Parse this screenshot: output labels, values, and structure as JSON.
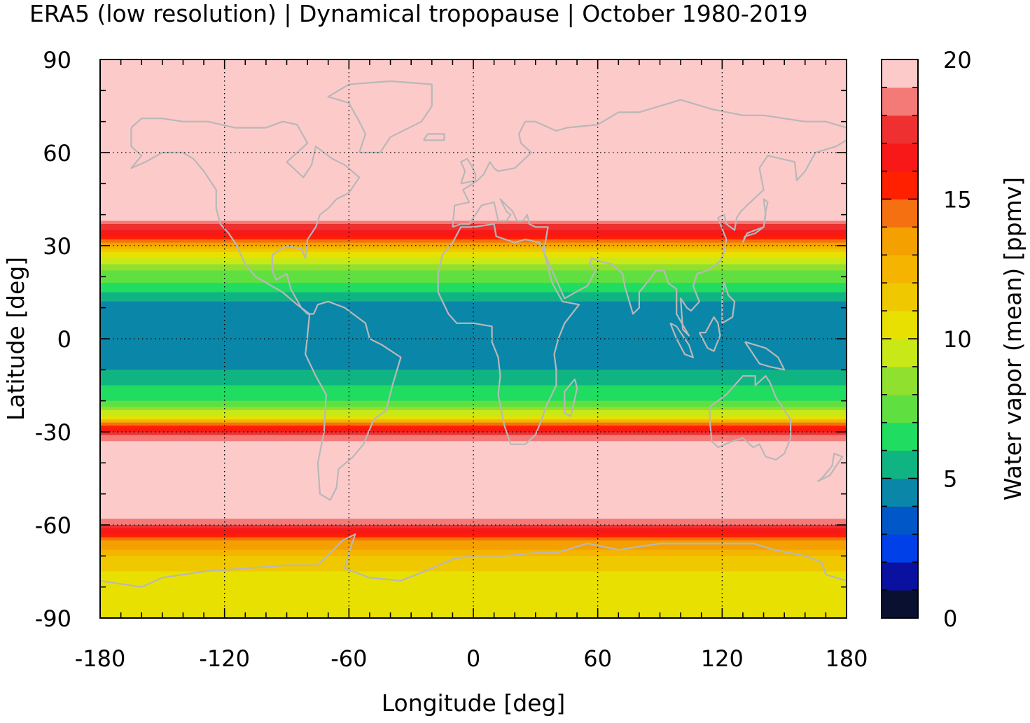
{
  "chart_data": {
    "type": "heatmap",
    "title": "ERA5 (low resolution) | Dynamical tropopause | October 1980-2019",
    "xlabel": "Longitude [deg]",
    "ylabel": "Latitude [deg]",
    "colorbar_label": "Water vapor (mean) [ppmv]",
    "xlim": [
      -180,
      180
    ],
    "ylim": [
      -90,
      90
    ],
    "x_ticks": [
      "-180",
      "-120",
      "-60",
      "0",
      "60",
      "120",
      "180"
    ],
    "y_ticks": [
      "90",
      "60",
      "30",
      "0",
      "-30",
      "-60",
      "-90"
    ],
    "x_tick_values": [
      -180,
      -120,
      -60,
      0,
      60,
      120,
      180
    ],
    "y_tick_values": [
      90,
      60,
      30,
      0,
      -30,
      -60,
      -90
    ],
    "colorbar_ticks": [
      "20",
      "15",
      "10",
      "5",
      "0"
    ],
    "colorbar_tick_values": [
      20,
      15,
      10,
      5,
      0
    ],
    "colorbar_range": [
      0,
      20
    ],
    "grid": true,
    "coastlines": true,
    "colormap": [
      "#0a1030",
      "#0a10a0",
      "#0040e8",
      "#0058c8",
      "#0a86a8",
      "#10b482",
      "#20dc60",
      "#60e040",
      "#90e030",
      "#c8e818",
      "#e8e000",
      "#f0c800",
      "#f4b400",
      "#f4a000",
      "#f47010",
      "#ff2000",
      "#f81818",
      "#ee3030",
      "#f47a78",
      "#fdcaca"
    ],
    "zonal_mean_profile": [
      {
        "lat": 90,
        "value": 20
      },
      {
        "lat": 60,
        "value": 20
      },
      {
        "lat": 40,
        "value": 20
      },
      {
        "lat": 35,
        "value": 17
      },
      {
        "lat": 32,
        "value": 15
      },
      {
        "lat": 28,
        "value": 11
      },
      {
        "lat": 22,
        "value": 8
      },
      {
        "lat": 15,
        "value": 6
      },
      {
        "lat": 12,
        "value": 5
      },
      {
        "lat": 0,
        "value": 4.5
      },
      {
        "lat": -10,
        "value": 5
      },
      {
        "lat": -15,
        "value": 6
      },
      {
        "lat": -20,
        "value": 7
      },
      {
        "lat": -25,
        "value": 10
      },
      {
        "lat": -28,
        "value": 15
      },
      {
        "lat": -31,
        "value": 18
      },
      {
        "lat": -35,
        "value": 20
      },
      {
        "lat": -55,
        "value": 20
      },
      {
        "lat": -60,
        "value": 18
      },
      {
        "lat": -65,
        "value": 14
      },
      {
        "lat": -70,
        "value": 12
      },
      {
        "lat": -80,
        "value": 10
      },
      {
        "lat": -90,
        "value": 10
      }
    ]
  }
}
